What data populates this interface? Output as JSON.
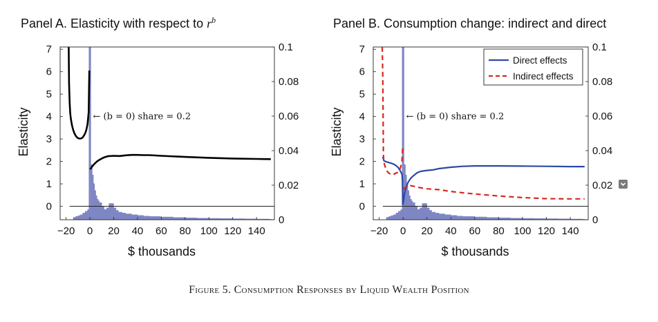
{
  "figure": {
    "caption": "Figure 5. Consumption Responses by Liquid Wealth Position"
  },
  "colors": {
    "histogram": "#7f86c4",
    "direct": "#2c48a4",
    "indirect": "#d6281e",
    "elasticity": "#000000"
  },
  "panels": [
    {
      "title_text": "Panel A. Elasticity with respect to ",
      "title_math": "r",
      "title_math_sup": "b",
      "annotation": "← (b = 0) share = 0.2"
    },
    {
      "title_text": "Panel B. Consumption change: indirect and direct",
      "annotation": "← (b = 0) share = 0.2",
      "legend": [
        {
          "label": "Direct effects",
          "style": "solid",
          "color": "#2c48a4"
        },
        {
          "label": "Indirect effects",
          "style": "dashed",
          "color": "#d6281e"
        }
      ]
    }
  ],
  "chart_data": [
    {
      "type": "line",
      "xlabel": "$ thousands",
      "ylabel": "Elasticity",
      "xlim": [
        -25,
        155
      ],
      "ylim": [
        -0.6,
        7.1
      ],
      "y2lim": [
        0,
        0.1
      ],
      "xticks": [
        "−20",
        "0",
        "20",
        "40",
        "60",
        "80",
        "100",
        "120",
        "140"
      ],
      "xtick_values": [
        -20,
        0,
        20,
        40,
        60,
        80,
        100,
        120,
        140
      ],
      "yticks": [
        0,
        1,
        2,
        3,
        4,
        5,
        6,
        7
      ],
      "y2ticks": [
        "0",
        "0.02",
        "0.04",
        "0.06",
        "0.08",
        "0.1"
      ],
      "y2tick_values": [
        0,
        0.02,
        0.04,
        0.06,
        0.08,
        0.1
      ],
      "series": [
        {
          "key": "elasticity",
          "segments": [
            {
              "x": [
                -17.8,
                -17.5,
                -17,
                -16.5,
                -16,
                -15,
                -14,
                -13,
                -12,
                -11,
                -10,
                -9,
                -8,
                -7,
                -6,
                -5,
                -4,
                -3,
                -2,
                -1,
                -0.5
              ],
              "y": [
                7.1,
                5.5,
                4.6,
                4.15,
                3.9,
                3.6,
                3.4,
                3.25,
                3.15,
                3.08,
                3.04,
                3.02,
                3.02,
                3.03,
                3.07,
                3.15,
                3.25,
                3.4,
                3.65,
                4.2,
                6.05
              ]
            },
            {
              "x": [
                0,
                1,
                2,
                4,
                6,
                8,
                10,
                12,
                15,
                20,
                25,
                30,
                35,
                40,
                45,
                50,
                60,
                80,
                100,
                120,
                140,
                152
              ],
              "y": [
                1.65,
                1.7,
                1.78,
                1.9,
                2.0,
                2.07,
                2.13,
                2.18,
                2.23,
                2.25,
                2.24,
                2.27,
                2.29,
                2.29,
                2.28,
                2.28,
                2.25,
                2.2,
                2.16,
                2.13,
                2.11,
                2.1
              ]
            }
          ]
        },
        {
          "key": "wealth_share",
          "axis": "right",
          "type": "histogram",
          "spike": {
            "x": 0,
            "share": 0.2
          },
          "x": [
            -14,
            -12,
            -10,
            -8,
            -6,
            -4,
            -2,
            1,
            2,
            3,
            4,
            5,
            6,
            7,
            8,
            10,
            12,
            14,
            16,
            18,
            20,
            22,
            24,
            27,
            30,
            35,
            40,
            45,
            50,
            60,
            70,
            80,
            90,
            100,
            110,
            120,
            130,
            140,
            150
          ],
          "y": [
            0.0015,
            0.002,
            0.0025,
            0.003,
            0.004,
            0.005,
            0.006,
            0.032,
            0.026,
            0.021,
            0.017,
            0.014,
            0.012,
            0.011,
            0.01,
            0.008,
            0.006,
            0.007,
            0.0095,
            0.0095,
            0.007,
            0.0055,
            0.0045,
            0.004,
            0.0035,
            0.003,
            0.0026,
            0.0022,
            0.002,
            0.0017,
            0.0014,
            0.0012,
            0.001,
            0.0009,
            0.0008,
            0.0007,
            0.0006,
            0.0005,
            0.0004
          ]
        }
      ],
      "annotation": {
        "x": 2,
        "y": 4.0
      }
    },
    {
      "type": "line",
      "xlabel": "$ thousands",
      "ylabel": "Elasticity",
      "xlim": [
        -25,
        155
      ],
      "ylim": [
        -0.6,
        7.1
      ],
      "y2lim": [
        0,
        0.1
      ],
      "xticks": [
        "−20",
        "0",
        "20",
        "40",
        "60",
        "80",
        "100",
        "120",
        "140"
      ],
      "xtick_values": [
        -20,
        0,
        20,
        40,
        60,
        80,
        100,
        120,
        140
      ],
      "yticks": [
        0,
        1,
        2,
        3,
        4,
        5,
        6,
        7
      ],
      "y2ticks": [
        "0",
        "0.02",
        "0.04",
        "0.06",
        "0.08",
        "0.1"
      ],
      "y2tick_values": [
        0,
        0.02,
        0.04,
        0.06,
        0.08,
        0.1
      ],
      "series": [
        {
          "key": "direct",
          "legend_label": "Direct effects",
          "segments": [
            {
              "x": [
                -17,
                -16,
                -14,
                -12,
                -10,
                -8,
                -6,
                -4,
                -2,
                -0.8,
                -0.5,
                -0.3
              ],
              "y": [
                2.2,
                2.03,
                1.98,
                1.95,
                1.92,
                1.88,
                1.82,
                1.72,
                1.55,
                1.4,
                1.1,
                0.05
              ]
            },
            {
              "x": [
                0,
                1,
                2,
                4,
                6,
                8,
                10,
                12,
                15,
                20,
                25,
                30,
                40,
                50,
                60,
                80,
                100,
                120,
                140,
                152
              ],
              "y": [
                0.1,
                0.5,
                0.75,
                1.05,
                1.22,
                1.33,
                1.42,
                1.5,
                1.56,
                1.6,
                1.62,
                1.68,
                1.74,
                1.78,
                1.8,
                1.8,
                1.79,
                1.78,
                1.77,
                1.77
              ]
            }
          ]
        },
        {
          "key": "indirect",
          "legend_label": "Indirect effects",
          "segments": [
            {
              "x": [
                -17.5,
                -17,
                -16.6,
                -16.5,
                -16.2,
                -15.5,
                -14,
                -12,
                -10,
                -8,
                -6,
                -4,
                -3,
                -2,
                -1,
                -0.4
              ],
              "y": [
                7.1,
                5.8,
                3.2,
                2.35,
                2.0,
                1.85,
                1.6,
                1.48,
                1.41,
                1.42,
                1.48,
                1.52,
                1.62,
                1.75,
                2.0,
                2.6
              ]
            },
            {
              "x": [
                0,
                2,
                4,
                6,
                10,
                15,
                20,
                30,
                40,
                50,
                60,
                80,
                100,
                120,
                140,
                152
              ],
              "y": [
                0.75,
                0.85,
                0.9,
                0.92,
                0.88,
                0.82,
                0.78,
                0.74,
                0.66,
                0.6,
                0.55,
                0.46,
                0.39,
                0.34,
                0.33,
                0.33
              ]
            }
          ]
        },
        {
          "key": "wealth_share",
          "axis": "right",
          "type": "histogram",
          "spike": {
            "x": 0,
            "share": 0.2
          },
          "x": [
            -14,
            -12,
            -10,
            -8,
            -6,
            -4,
            -2,
            1,
            2,
            3,
            4,
            5,
            6,
            7,
            8,
            10,
            12,
            14,
            16,
            18,
            20,
            22,
            24,
            27,
            30,
            35,
            40,
            45,
            50,
            60,
            70,
            80,
            90,
            100,
            110,
            120,
            130,
            140,
            150
          ],
          "y": [
            0.0015,
            0.002,
            0.0025,
            0.003,
            0.004,
            0.005,
            0.006,
            0.032,
            0.026,
            0.021,
            0.017,
            0.014,
            0.012,
            0.011,
            0.01,
            0.008,
            0.006,
            0.007,
            0.0095,
            0.0095,
            0.007,
            0.0055,
            0.0045,
            0.004,
            0.0035,
            0.003,
            0.0026,
            0.0022,
            0.002,
            0.0017,
            0.0014,
            0.0012,
            0.001,
            0.0009,
            0.0008,
            0.0007,
            0.0006,
            0.0005,
            0.0004
          ]
        }
      ],
      "annotation": {
        "x": 2,
        "y": 4.0
      }
    }
  ]
}
